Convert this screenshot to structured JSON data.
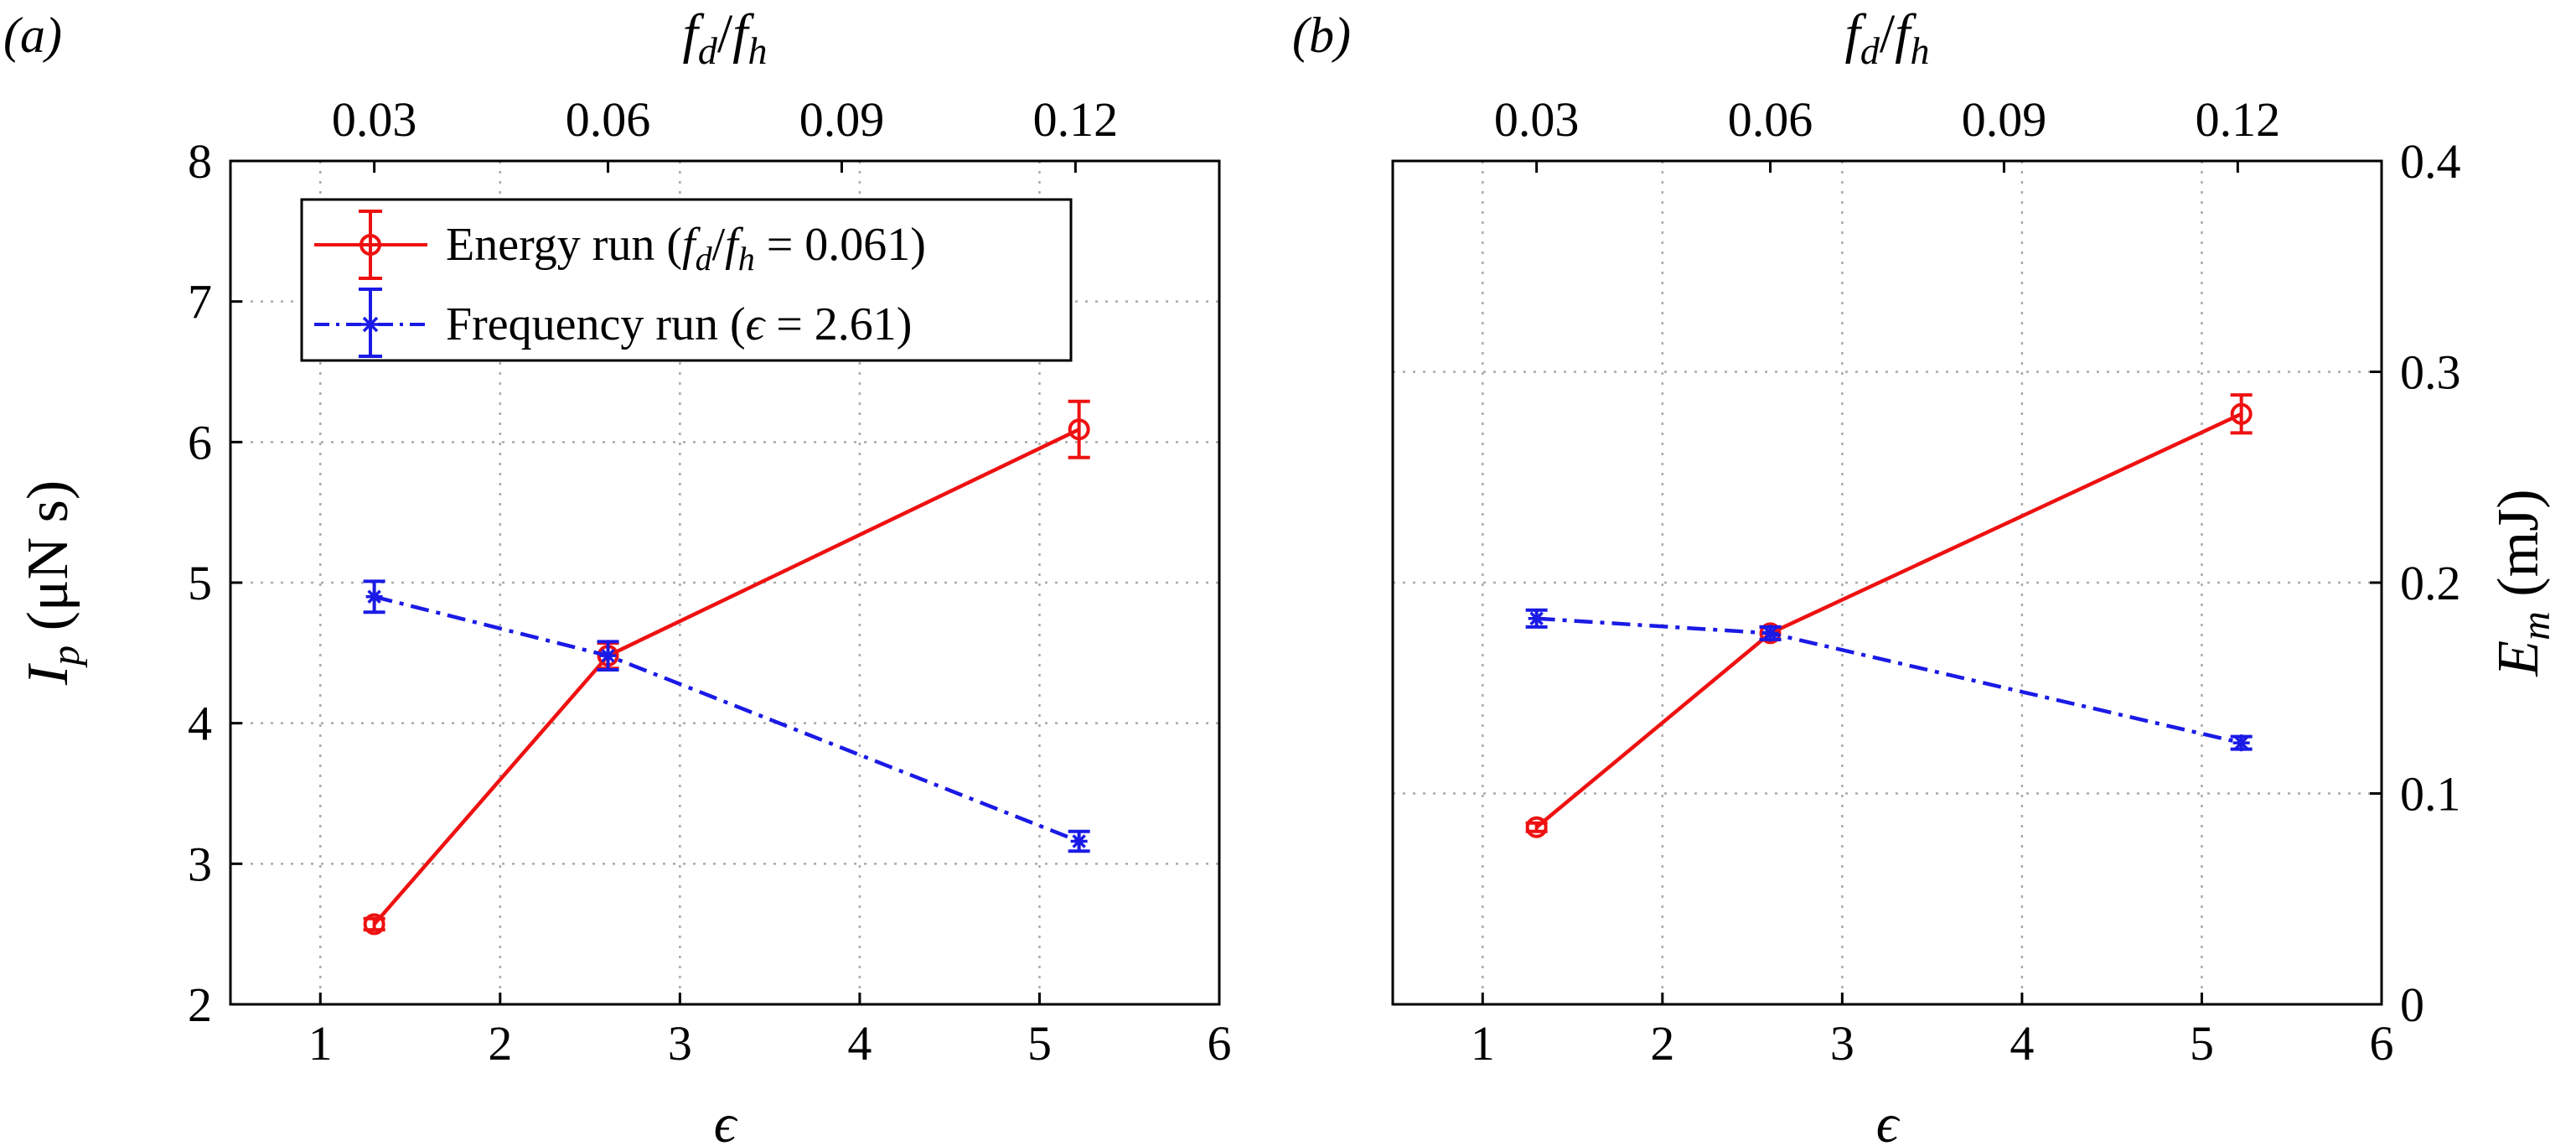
{
  "chart_data": [
    {
      "panel": "(a)",
      "type": "line",
      "xlabel": "ϵ",
      "ylabel": "I",
      "ylabel_sub": "p",
      "ylabel_unit": " (μN s)",
      "top_xlabel": {
        "num": "f",
        "num_sub": "d",
        "slash": "/",
        "den": "f",
        "den_sub": "h"
      },
      "xlim": [
        0.5,
        6
      ],
      "ylim": [
        2,
        8
      ],
      "xticks": [
        1,
        2,
        3,
        4,
        5,
        6
      ],
      "xtick_labels": [
        "1",
        "2",
        "3",
        "4",
        "5",
        "6"
      ],
      "yticks": [
        2,
        3,
        4,
        5,
        6,
        7,
        8
      ],
      "ytick_labels": [
        "2",
        "3",
        "4",
        "5",
        "6",
        "7",
        "8"
      ],
      "top_ticks": [
        {
          "label": "0.03",
          "at_x": 1.3
        },
        {
          "label": "0.06",
          "at_x": 2.6
        },
        {
          "label": "0.09",
          "at_x": 3.9
        },
        {
          "label": "0.12",
          "at_x": 5.2
        }
      ],
      "grid": true,
      "legend": {
        "placement": "top-left",
        "entries": [
          {
            "series": "Energy run",
            "label": "Energy run (",
            "cond_lhs": "f",
            "cond_lhs_sub": "d",
            "cond_slash": "/",
            "cond_den": "f",
            "cond_den_sub": "h",
            "cond_eq": " = 0.061)"
          },
          {
            "series": "Frequency run",
            "label": "Frequency run (",
            "cond_lhs": "ϵ",
            "cond_eq": " = 2.61)"
          }
        ]
      },
      "series": [
        {
          "name": "Energy run",
          "color": "#ee1111",
          "marker": "circle",
          "line": "solid",
          "x": [
            1.3,
            2.6,
            5.22
          ],
          "y": [
            2.57,
            4.48,
            6.09
          ],
          "err": [
            0.04,
            0.09,
            0.2
          ]
        },
        {
          "name": "Frequency run",
          "color": "#1a1ae6",
          "marker": "star",
          "line": "dashdot",
          "x": [
            1.3,
            2.6,
            5.22
          ],
          "y": [
            4.9,
            4.48,
            3.16
          ],
          "err": [
            0.11,
            0.1,
            0.07
          ]
        }
      ]
    },
    {
      "panel": "(b)",
      "type": "line",
      "xlabel": "ϵ",
      "ylabel": "E",
      "ylabel_sub": "m",
      "ylabel_unit": " (mJ)",
      "ylabel_side": "right",
      "top_xlabel": {
        "num": "f",
        "num_sub": "d",
        "slash": "/",
        "den": "f",
        "den_sub": "h"
      },
      "xlim": [
        0.5,
        6
      ],
      "ylim": [
        0,
        0.4
      ],
      "xticks": [
        1,
        2,
        3,
        4,
        5,
        6
      ],
      "xtick_labels": [
        "1",
        "2",
        "3",
        "4",
        "5",
        "6"
      ],
      "yticks": [
        0,
        0.1,
        0.2,
        0.3,
        0.4
      ],
      "ytick_labels": [
        "0",
        "0.1",
        "0.2",
        "0.3",
        "0.4"
      ],
      "top_ticks": [
        {
          "label": "0.03",
          "at_x": 1.3
        },
        {
          "label": "0.06",
          "at_x": 2.6
        },
        {
          "label": "0.09",
          "at_x": 3.9
        },
        {
          "label": "0.12",
          "at_x": 5.2
        }
      ],
      "grid": true,
      "series": [
        {
          "name": "Energy run",
          "color": "#ee1111",
          "marker": "circle",
          "line": "solid",
          "x": [
            1.3,
            2.6,
            5.22
          ],
          "y": [
            0.084,
            0.176,
            0.28
          ],
          "err": [
            0.002,
            0.003,
            0.009
          ]
        },
        {
          "name": "Frequency run",
          "color": "#1a1ae6",
          "marker": "star",
          "line": "dashdot",
          "x": [
            1.3,
            2.6,
            5.22
          ],
          "y": [
            0.183,
            0.176,
            0.124
          ],
          "err": [
            0.004,
            0.003,
            0.003
          ]
        }
      ]
    }
  ]
}
